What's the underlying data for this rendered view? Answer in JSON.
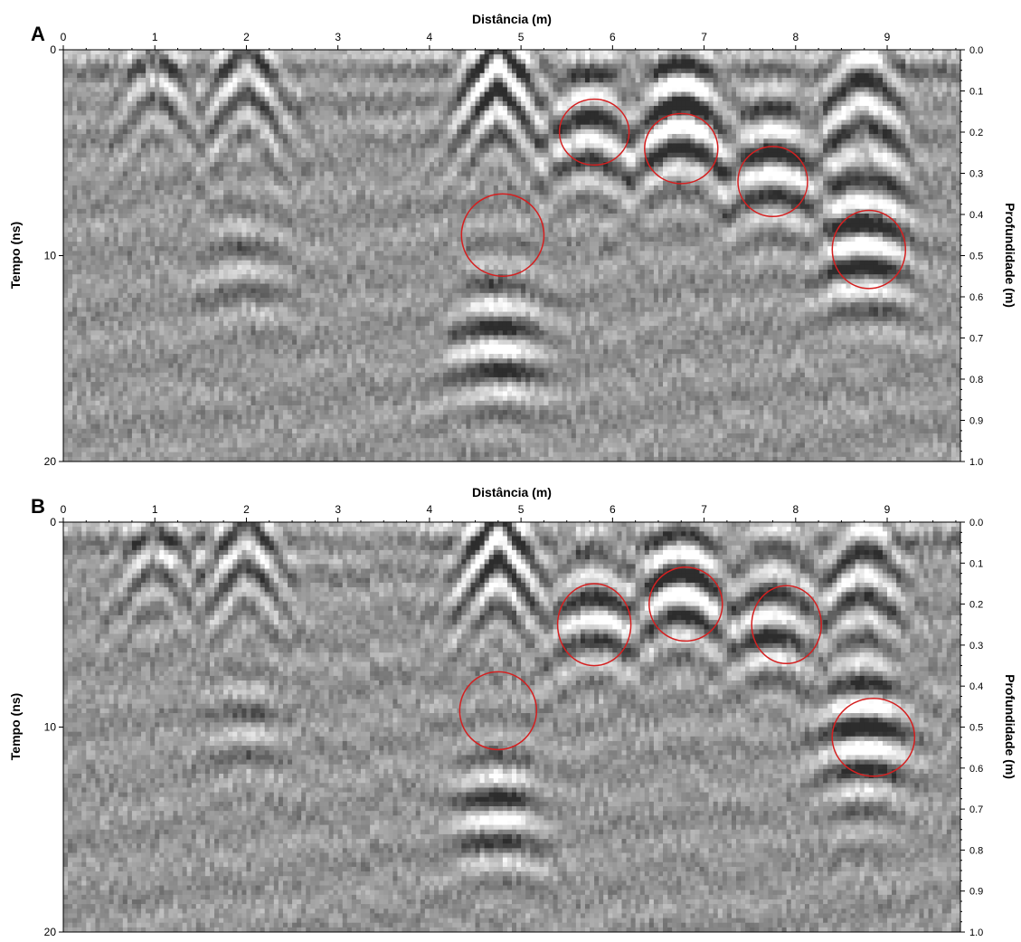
{
  "chart_data": [
    {
      "type": "heatmap",
      "panel_label": "A",
      "xlabel": "Distância (m)",
      "ylabel_left": "Tempo (ns)",
      "ylabel_right": "Profundidade (m)",
      "xlim": [
        0,
        9.8
      ],
      "ylim_left": [
        0,
        20
      ],
      "ylim_right": [
        0,
        1.0
      ],
      "x_ticks": [
        "0",
        "1",
        "2",
        "3",
        "4",
        "5",
        "6",
        "7",
        "8",
        "9"
      ],
      "y_ticks_left": [
        "0",
        "10",
        "20"
      ],
      "y_ticks_right": [
        "0.0",
        "0.1",
        "0.2",
        "0.3",
        "0.4",
        "0.5",
        "0.6",
        "0.7",
        "0.8",
        "0.9",
        "1.0"
      ],
      "colormap": "grayscale",
      "hyperbola_apexes": [
        {
          "x": 1.0,
          "t": 0.8,
          "amp": 0.7
        },
        {
          "x": 2.0,
          "t": 0.5,
          "amp": 1.0
        },
        {
          "x": 2.0,
          "t": 10.2,
          "amp": 0.6
        },
        {
          "x": 4.75,
          "t": 0.3,
          "amp": 1.6
        },
        {
          "x": 4.75,
          "t": 14.0,
          "amp": 1.3
        },
        {
          "x": 5.75,
          "t": 3.8,
          "amp": 1.2
        },
        {
          "x": 6.75,
          "t": 3.2,
          "amp": 1.6
        },
        {
          "x": 7.75,
          "t": 5.5,
          "amp": 1.3
        },
        {
          "x": 8.75,
          "t": 9.0,
          "amp": 1.6
        },
        {
          "x": 8.75,
          "t": 2.0,
          "amp": 1.2
        }
      ],
      "highlights": [
        {
          "x": 4.8,
          "t": 9.0,
          "rx": 0.45,
          "rt": 2.0
        },
        {
          "x": 5.8,
          "t": 4.0,
          "rx": 0.38,
          "rt": 1.6
        },
        {
          "x": 6.75,
          "t": 4.8,
          "rx": 0.4,
          "rt": 1.7
        },
        {
          "x": 7.75,
          "t": 6.4,
          "rx": 0.38,
          "rt": 1.7
        },
        {
          "x": 8.8,
          "t": 9.7,
          "rx": 0.4,
          "rt": 1.9
        }
      ],
      "highlight_color": "#d42020"
    },
    {
      "type": "heatmap",
      "panel_label": "B",
      "xlabel": "Distância (m)",
      "ylabel_left": "Tempo (ns)",
      "ylabel_right": "Profundidade (m)",
      "xlim": [
        0,
        9.8
      ],
      "ylim_left": [
        0,
        20
      ],
      "ylim_right": [
        0,
        1.0
      ],
      "x_ticks": [
        "0",
        "1",
        "2",
        "3",
        "4",
        "5",
        "6",
        "7",
        "8",
        "9"
      ],
      "y_ticks_left": [
        "0",
        "10",
        "20"
      ],
      "y_ticks_right": [
        "0.0",
        "0.1",
        "0.2",
        "0.3",
        "0.4",
        "0.5",
        "0.6",
        "0.7",
        "0.8",
        "0.9",
        "1.0"
      ],
      "colormap": "grayscale",
      "hyperbola_apexes": [
        {
          "x": 1.0,
          "t": 0.8,
          "amp": 0.7
        },
        {
          "x": 2.0,
          "t": 0.5,
          "amp": 1.0
        },
        {
          "x": 2.0,
          "t": 9.8,
          "amp": 0.5
        },
        {
          "x": 4.75,
          "t": 0.3,
          "amp": 1.5
        },
        {
          "x": 4.75,
          "t": 14.0,
          "amp": 1.1
        },
        {
          "x": 5.8,
          "t": 4.2,
          "amp": 1.1
        },
        {
          "x": 6.75,
          "t": 3.0,
          "amp": 1.4
        },
        {
          "x": 7.75,
          "t": 4.0,
          "amp": 1.2
        },
        {
          "x": 8.75,
          "t": 10.5,
          "amp": 1.5
        },
        {
          "x": 8.75,
          "t": 2.0,
          "amp": 1.1
        }
      ],
      "highlights": [
        {
          "x": 4.75,
          "t": 9.2,
          "rx": 0.42,
          "rt": 1.9
        },
        {
          "x": 5.8,
          "t": 5.0,
          "rx": 0.4,
          "rt": 2.0
        },
        {
          "x": 6.8,
          "t": 4.0,
          "rx": 0.4,
          "rt": 1.8
        },
        {
          "x": 7.9,
          "t": 5.0,
          "rx": 0.38,
          "rt": 1.9
        },
        {
          "x": 8.85,
          "t": 10.5,
          "rx": 0.45,
          "rt": 1.9
        }
      ],
      "highlight_color": "#d42020"
    }
  ]
}
